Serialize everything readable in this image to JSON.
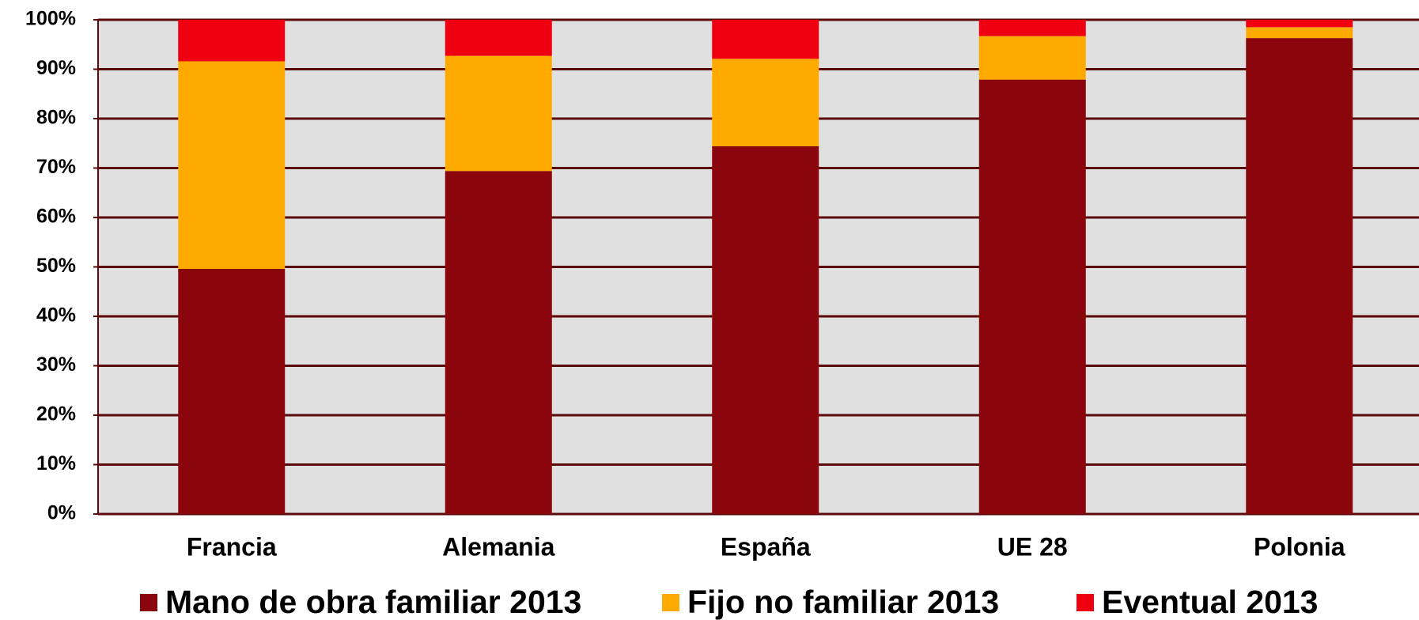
{
  "chart_data": {
    "type": "stacked_bar",
    "categories": [
      "Francia",
      "Alemania",
      "España",
      "UE 28",
      "Polonia"
    ],
    "series": [
      {
        "name": "Mano de obra familiar 2013",
        "color": "#8b060c",
        "values": [
          49.6,
          69.4,
          74.4,
          87.9,
          96.3
        ]
      },
      {
        "name": "Fijo no familiar 2013",
        "color": "#ffaa00",
        "values": [
          42.0,
          23.3,
          17.7,
          8.8,
          2.2
        ]
      },
      {
        "name": "Eventual 2013",
        "color": "#ee0011",
        "values": [
          8.4,
          7.3,
          7.9,
          3.3,
          1.5
        ]
      }
    ],
    "ylim": [
      0,
      100
    ],
    "yticks": [
      {
        "value": 0,
        "label": "0%"
      },
      {
        "value": 10,
        "label": "10%"
      },
      {
        "value": 20,
        "label": "20%"
      },
      {
        "value": 30,
        "label": "30%"
      },
      {
        "value": 40,
        "label": "40%"
      },
      {
        "value": 50,
        "label": "50%"
      },
      {
        "value": 60,
        "label": "60%"
      },
      {
        "value": 70,
        "label": "70%"
      },
      {
        "value": 80,
        "label": "80%"
      },
      {
        "value": 90,
        "label": "90%"
      },
      {
        "value": 100,
        "label": "100%"
      }
    ],
    "grid": true,
    "legend": "bottom"
  }
}
